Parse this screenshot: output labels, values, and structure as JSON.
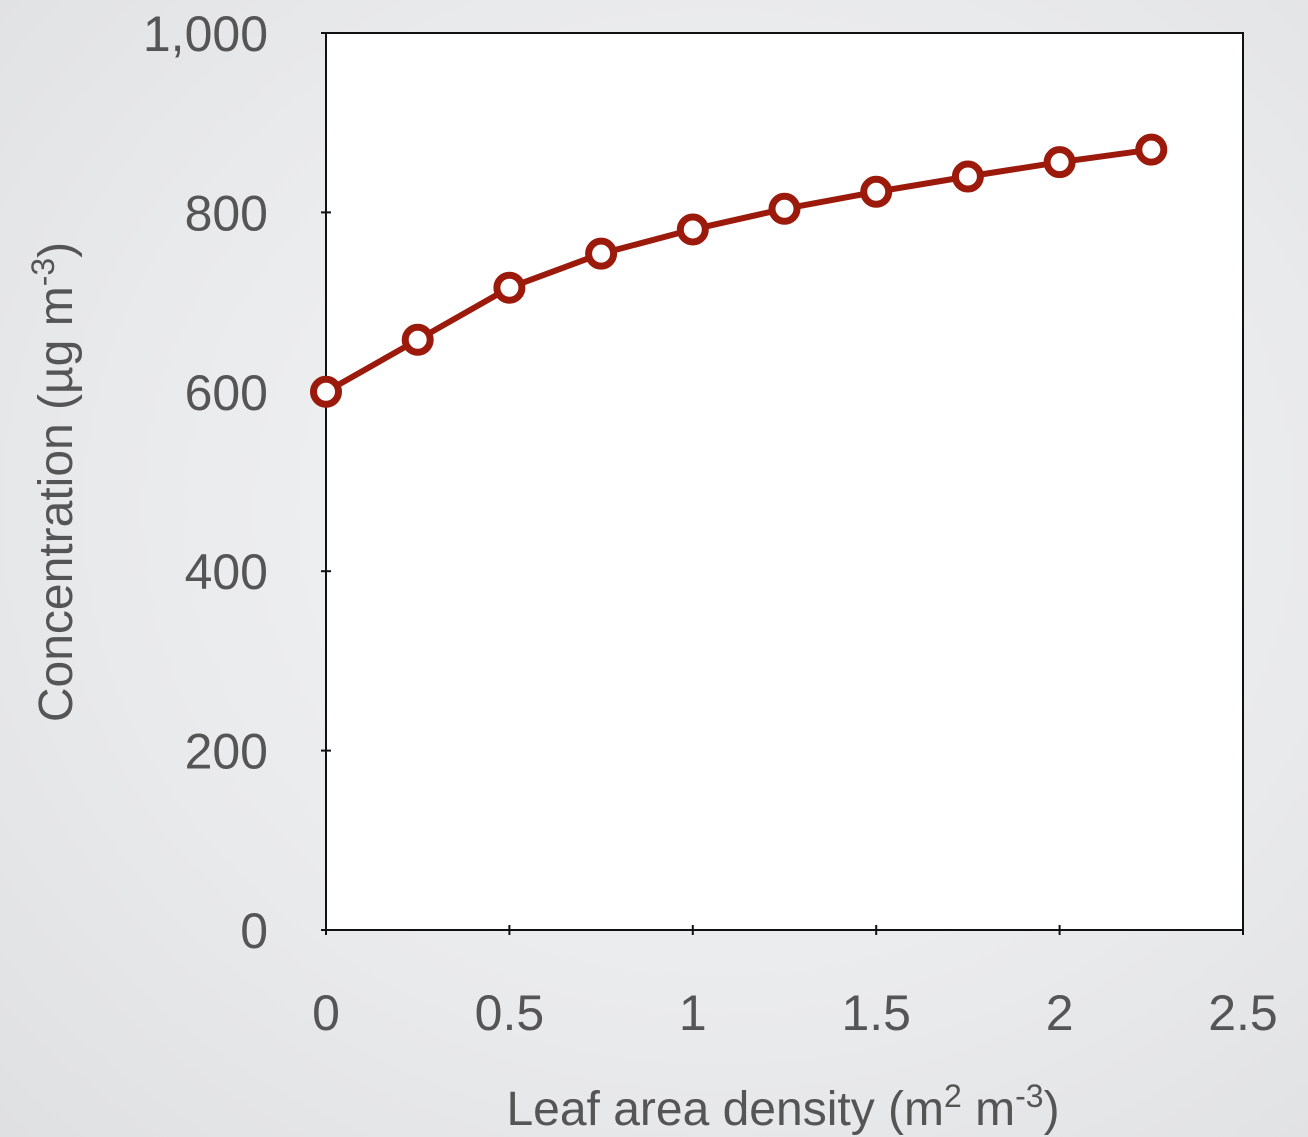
{
  "chart_data": {
    "type": "line",
    "xlabel": {
      "base": "Leaf area density (m",
      "sup1": "2",
      "mid": " m",
      "sup2": "-3",
      "end": ")"
    },
    "ylabel": {
      "base": "Concentration (µg m",
      "sup": "-3",
      "end": ")"
    },
    "xlim": [
      0,
      2.5
    ],
    "ylim": [
      0,
      1000
    ],
    "x_ticks": [
      0,
      0.5,
      1,
      1.5,
      2,
      2.5
    ],
    "x_tick_labels": [
      "0",
      "0.5",
      "1",
      "1.5",
      "2",
      "2.5"
    ],
    "y_ticks": [
      0,
      200,
      400,
      600,
      800,
      1000
    ],
    "y_tick_labels": [
      "0",
      "200",
      "400",
      "600",
      "800",
      "1,000"
    ],
    "grid": false,
    "series": [
      {
        "x": [
          0,
          0.25,
          0.5,
          0.75,
          1,
          1.25,
          1.5,
          1.75,
          2,
          2.25
        ],
        "y": [
          600,
          658,
          716,
          754,
          781,
          804,
          823,
          840,
          856,
          870
        ],
        "color": "#9b1a0c"
      }
    ]
  }
}
